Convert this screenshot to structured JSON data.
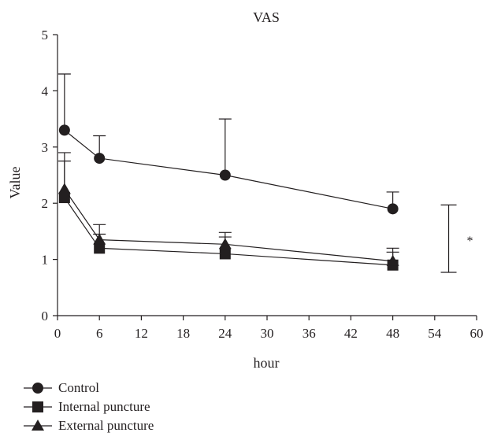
{
  "chart_data": {
    "type": "line",
    "title": "VAS",
    "xlabel": "hour",
    "ylabel": "Value",
    "xlim": [
      0,
      60
    ],
    "ylim": [
      0,
      5
    ],
    "xticks": [
      "0",
      "6",
      "12",
      "18",
      "24",
      "30",
      "36",
      "42",
      "48",
      "54",
      "60"
    ],
    "yticks": [
      "0",
      "1",
      "2",
      "3",
      "4",
      "5"
    ],
    "x": [
      1,
      6,
      24,
      48
    ],
    "series": [
      {
        "name": "Control",
        "marker": "circle",
        "values": [
          3.3,
          2.8,
          2.5,
          1.9
        ],
        "error_upper": [
          4.3,
          3.2,
          3.5,
          2.2
        ]
      },
      {
        "name": "Internal puncture",
        "marker": "square",
        "values": [
          2.1,
          1.2,
          1.1,
          0.9
        ],
        "error_upper": [
          2.75,
          1.45,
          1.4,
          1.13
        ]
      },
      {
        "name": "External puncture",
        "marker": "triangle",
        "values": [
          2.25,
          1.35,
          1.27,
          0.97
        ],
        "error_upper": [
          2.9,
          1.62,
          1.48,
          1.2
        ]
      }
    ],
    "significance": {
      "x": 56,
      "low": 0.77,
      "high": 1.97,
      "label": "*"
    },
    "grid": false,
    "legend_position": "bottom-left",
    "color": "#231f20"
  }
}
